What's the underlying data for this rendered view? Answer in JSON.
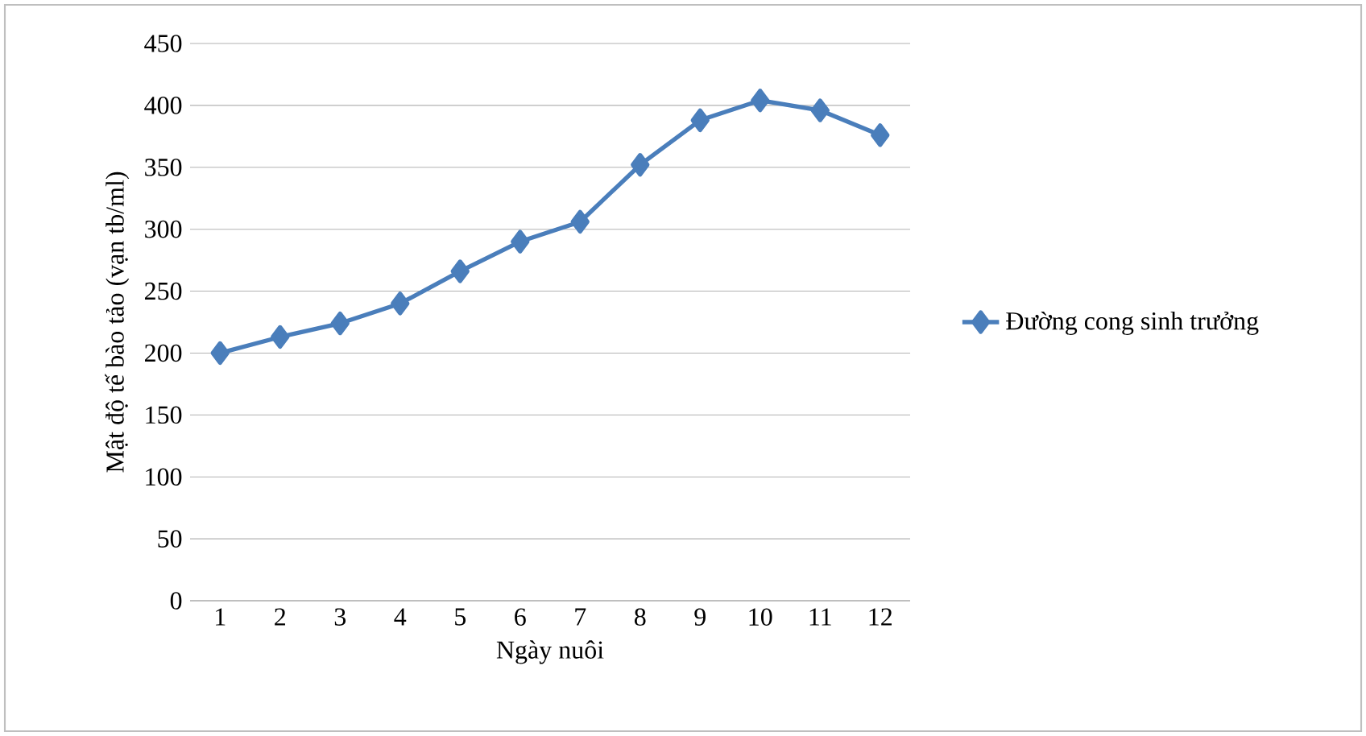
{
  "chart_data": {
    "type": "line",
    "xlabel": "Ngày nuôi",
    "ylabel": "Mật độ tế bào tảo (vạn tb/ml)",
    "categories": [
      "1",
      "2",
      "3",
      "4",
      "5",
      "6",
      "7",
      "8",
      "9",
      "10",
      "11",
      "12"
    ],
    "series": [
      {
        "name": "Đường cong sinh trưởng",
        "color": "#4a7ebb",
        "values": [
          200,
          213,
          224,
          240,
          266,
          290,
          306,
          352,
          388,
          404,
          396,
          376
        ]
      }
    ],
    "ylim": [
      0,
      450
    ],
    "yticks": [
      0,
      50,
      100,
      150,
      200,
      250,
      300,
      350,
      400,
      450
    ],
    "grid": "y",
    "legend": "right",
    "marker": "diamond",
    "line_style": "solid"
  }
}
